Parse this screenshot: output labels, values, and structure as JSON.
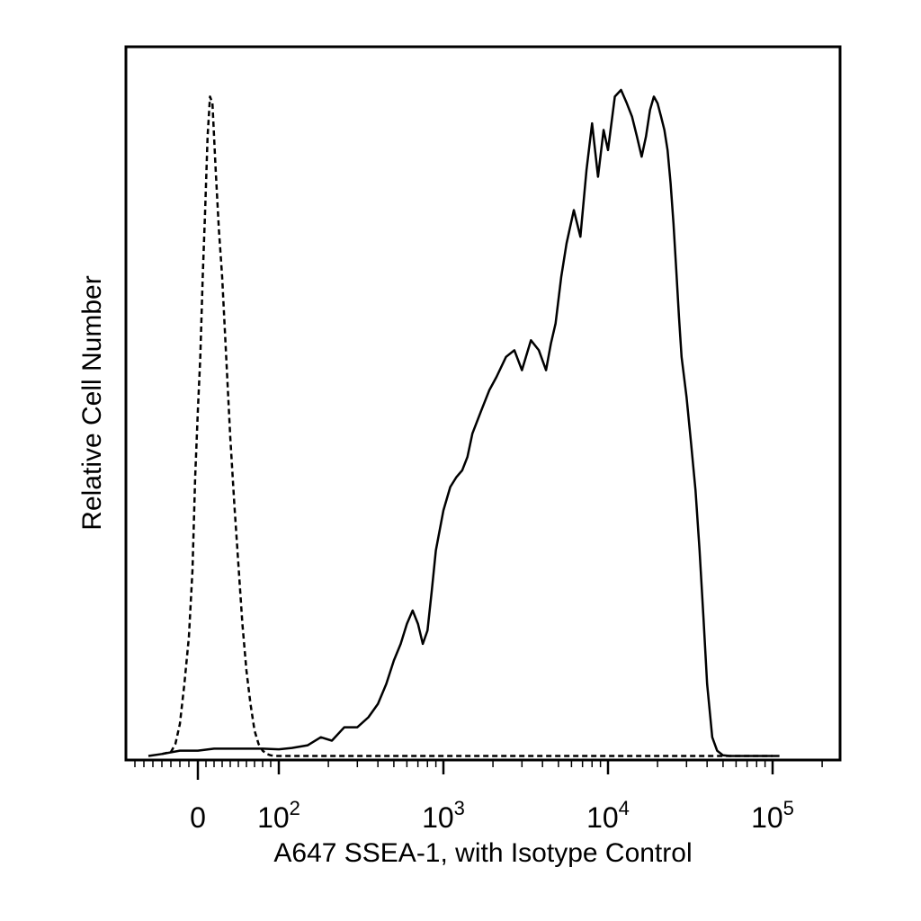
{
  "chart_data": {
    "type": "line",
    "title": "",
    "xlabel": "A647 SSEA-1, with Isotype Control",
    "ylabel": "Relative Cell Number",
    "x_scale": "biexponential",
    "xlim": [
      -60,
      250000
    ],
    "ylim": [
      0,
      100
    ],
    "grid": false,
    "legend": "none",
    "x_ticks": [
      {
        "value": 0,
        "base": "0",
        "exp": ""
      },
      {
        "value": 100,
        "base": "10",
        "exp": "2"
      },
      {
        "value": 1000,
        "base": "10",
        "exp": "3"
      },
      {
        "value": 10000,
        "base": "10",
        "exp": "4"
      },
      {
        "value": 100000,
        "base": "10",
        "exp": "5"
      }
    ],
    "series": [
      {
        "style": "dashed",
        "color": "#000000",
        "x": [
          -40,
          -30,
          -25,
          -20,
          -15,
          -10,
          -6,
          -3,
          0,
          3,
          6,
          9,
          12,
          15,
          18,
          22,
          26,
          30,
          35,
          40,
          45,
          50,
          55,
          60,
          65,
          70,
          75,
          80,
          85,
          90,
          95,
          100,
          130,
          200,
          400,
          1000,
          10000,
          100000
        ],
        "y": [
          0.5,
          0.8,
          2,
          5,
          11,
          18,
          28,
          42,
          52,
          60,
          72,
          82,
          93,
          99,
          98,
          88,
          79,
          72,
          60,
          48,
          38,
          29,
          20,
          13,
          8,
          4,
          2,
          1,
          0.5,
          0.3,
          0.2,
          0.2,
          0.2,
          0.2,
          0.2,
          0.2,
          0.2,
          0.2
        ]
      },
      {
        "style": "solid",
        "color": "#000000",
        "x": [
          -55,
          -40,
          -20,
          0,
          20,
          50,
          80,
          100,
          120,
          150,
          180,
          210,
          250,
          300,
          350,
          400,
          450,
          500,
          550,
          600,
          650,
          700,
          750,
          800,
          850,
          900,
          1000,
          1100,
          1200,
          1300,
          1400,
          1500,
          1700,
          1900,
          2100,
          2400,
          2700,
          3000,
          3400,
          3800,
          4200,
          4500,
          4800,
          5200,
          5600,
          6200,
          6800,
          7400,
          8000,
          8700,
          9400,
          10000,
          11000,
          12000,
          13000,
          14000,
          15000,
          16000,
          17000,
          18000,
          19000,
          20000,
          21000,
          22000,
          23000,
          24000,
          25000,
          26000,
          27000,
          28000,
          30000,
          32000,
          34000,
          36000,
          38000,
          40000,
          43000,
          46000,
          50000,
          55000,
          60000,
          70000,
          80000,
          90000,
          100000,
          110000
        ],
        "y": [
          0.2,
          0.5,
          1,
          1,
          1.3,
          1.3,
          1.3,
          1.2,
          1.4,
          1.8,
          3,
          2.5,
          4.5,
          4.5,
          6,
          8,
          11,
          14.5,
          17,
          20,
          22,
          20,
          17,
          19,
          25,
          31,
          37,
          40.5,
          42,
          43,
          45,
          48.5,
          52,
          55,
          57,
          60,
          61,
          58,
          62.5,
          61,
          58,
          62,
          65,
          72,
          77,
          82,
          78,
          88,
          95,
          87,
          94,
          91,
          99,
          100,
          98,
          96,
          93,
          90,
          93,
          97,
          99,
          98,
          96,
          94,
          91,
          86,
          80,
          73,
          66,
          60,
          54,
          47,
          40,
          31,
          21,
          11,
          3,
          1,
          0.3,
          0.2,
          0.2,
          0.2,
          0.2,
          0.2,
          0.2,
          0.2
        ]
      }
    ]
  }
}
